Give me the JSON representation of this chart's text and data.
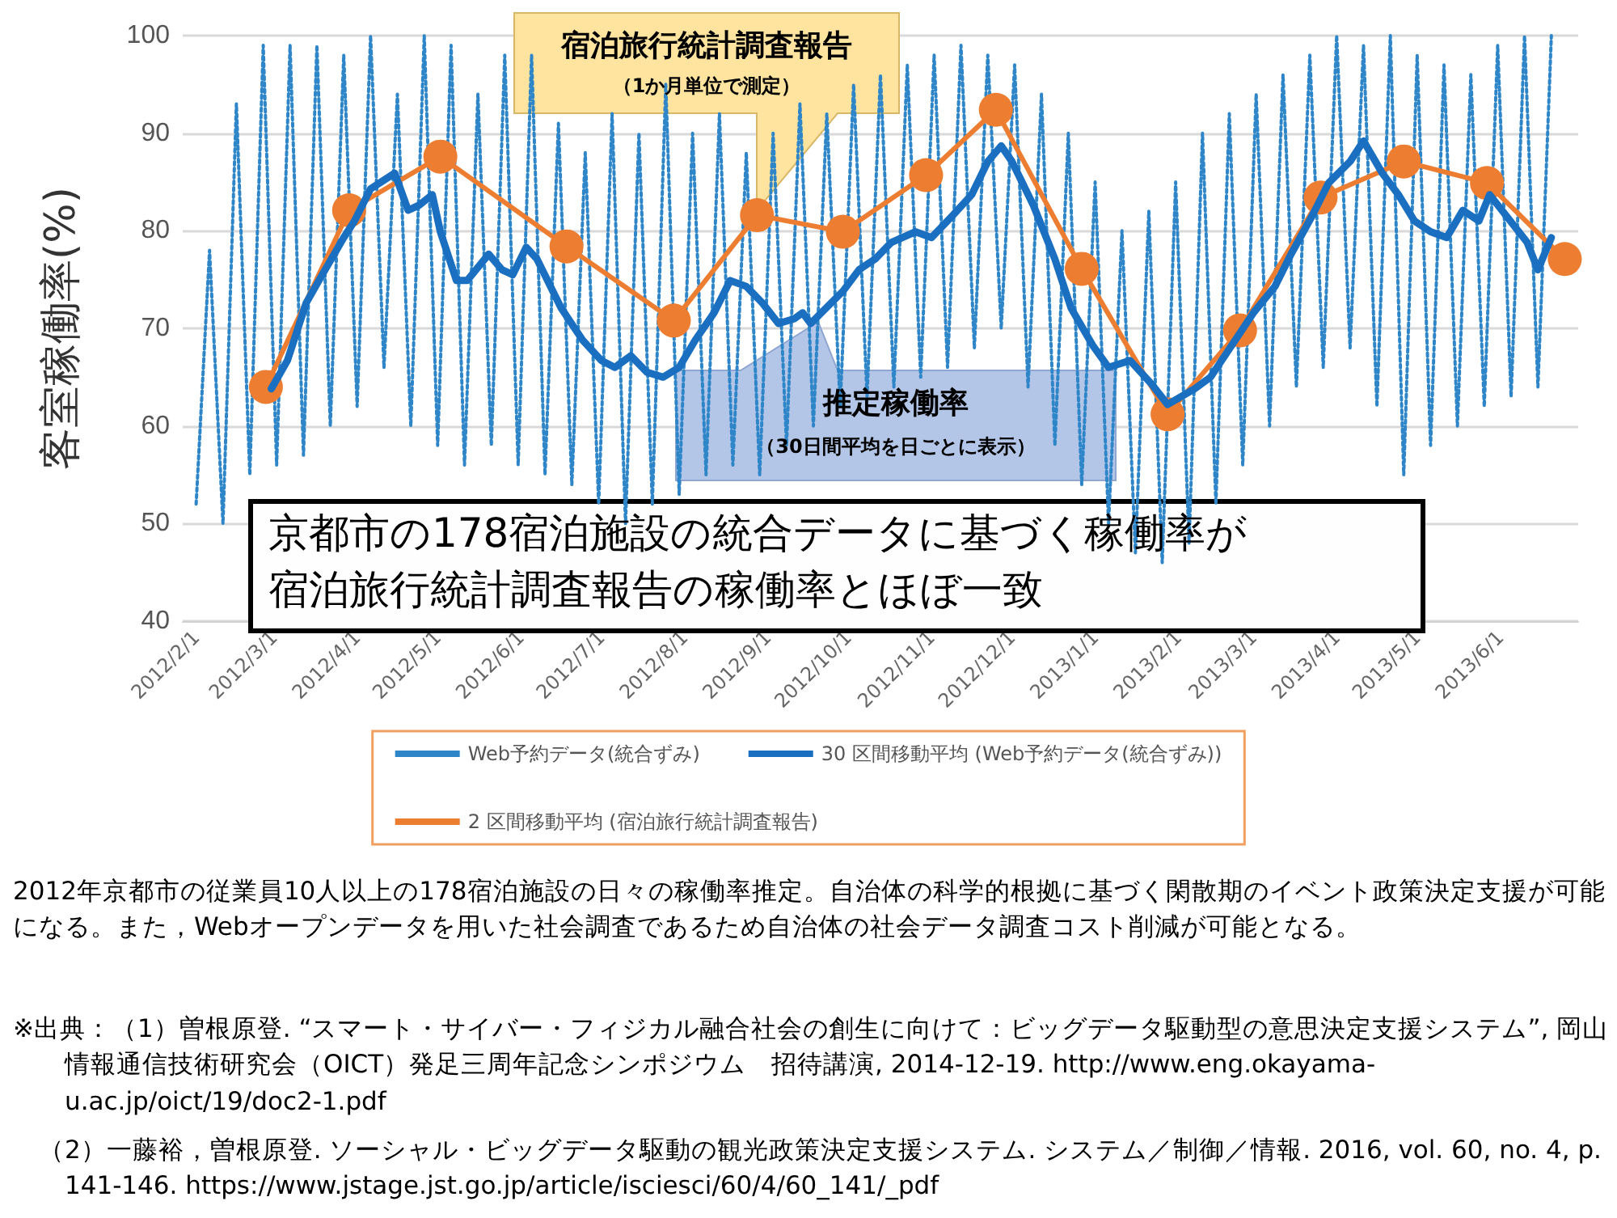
{
  "chart_data": {
    "type": "line",
    "ylabel": "客室稼働率(%)",
    "xlim": [
      "2012-01-27",
      "2013-06-30"
    ],
    "xticks": [
      {
        "value": "2012-02-01",
        "label": "2012/2/1"
      },
      {
        "value": "2012-03-01",
        "label": "2012/3/1"
      },
      {
        "value": "2012-04-01",
        "label": "2012/4/1"
      },
      {
        "value": "2012-05-01",
        "label": "2012/5/1"
      },
      {
        "value": "2012-06-01",
        "label": "2012/6/1"
      },
      {
        "value": "2012-07-01",
        "label": "2012/7/1"
      },
      {
        "value": "2012-08-01",
        "label": "2012/8/1"
      },
      {
        "value": "2012-09-01",
        "label": "2012/9/1"
      },
      {
        "value": "2012-10-01",
        "label": "2012/10/1"
      },
      {
        "value": "2012-11-01",
        "label": "2012/11/1"
      },
      {
        "value": "2012-12-01",
        "label": "2012/12/1"
      },
      {
        "value": "2013-01-01",
        "label": "2013/1/1"
      },
      {
        "value": "2013-02-01",
        "label": "2013/2/1"
      },
      {
        "value": "2013-03-01",
        "label": "2013/3/1"
      },
      {
        "value": "2013-04-01",
        "label": "2013/4/1"
      },
      {
        "value": "2013-05-01",
        "label": "2013/5/1"
      },
      {
        "value": "2013-06-01",
        "label": "2013/6/1"
      }
    ],
    "ylim": [
      40,
      100
    ],
    "yticks": [
      40,
      50,
      60,
      70,
      80,
      90,
      100
    ],
    "grid": "y",
    "legend": "bottom",
    "series": [
      {
        "name": "Web予約データ(統合ずみ)",
        "color": "#2e86c8",
        "line_style": "dotted",
        "marker": "none",
        "x": [
          "2012-02-01",
          "2012-02-06",
          "2012-02-11",
          "2012-02-16",
          "2012-02-21",
          "2012-02-26",
          "2012-03-02",
          "2012-03-07",
          "2012-03-12",
          "2012-03-17",
          "2012-03-22",
          "2012-03-27",
          "2012-04-01",
          "2012-04-06",
          "2012-04-11",
          "2012-04-16",
          "2012-04-21",
          "2012-04-26",
          "2012-05-01",
          "2012-05-06",
          "2012-05-11",
          "2012-05-16",
          "2012-05-21",
          "2012-05-26",
          "2012-05-31",
          "2012-06-05",
          "2012-06-10",
          "2012-06-15",
          "2012-06-20",
          "2012-06-25",
          "2012-06-30",
          "2012-07-05",
          "2012-07-10",
          "2012-07-15",
          "2012-07-20",
          "2012-07-25",
          "2012-07-30",
          "2012-08-04",
          "2012-08-09",
          "2012-08-14",
          "2012-08-19",
          "2012-08-24",
          "2012-08-29",
          "2012-09-03",
          "2012-09-08",
          "2012-09-13",
          "2012-09-18",
          "2012-09-23",
          "2012-09-28",
          "2012-10-03",
          "2012-10-08",
          "2012-10-13",
          "2012-10-18",
          "2012-10-23",
          "2012-10-28",
          "2012-11-02",
          "2012-11-07",
          "2012-11-12",
          "2012-11-17",
          "2012-11-22",
          "2012-11-27",
          "2012-12-02",
          "2012-12-07",
          "2012-12-12",
          "2012-12-17",
          "2012-12-22",
          "2012-12-27",
          "2013-01-01",
          "2013-01-06",
          "2013-01-11",
          "2013-01-16",
          "2013-01-21",
          "2013-01-26",
          "2013-01-31",
          "2013-02-05",
          "2013-02-10",
          "2013-02-15",
          "2013-02-20",
          "2013-02-25",
          "2013-03-02",
          "2013-03-07",
          "2013-03-12",
          "2013-03-17",
          "2013-03-22",
          "2013-03-27",
          "2013-04-01",
          "2013-04-06",
          "2013-04-11",
          "2013-04-16",
          "2013-04-21",
          "2013-04-26",
          "2013-05-01",
          "2013-05-06",
          "2013-05-11",
          "2013-05-16",
          "2013-05-21",
          "2013-05-26",
          "2013-05-31",
          "2013-06-05",
          "2013-06-10",
          "2013-06-15",
          "2013-06-20"
        ],
        "values": [
          52,
          78,
          50,
          93,
          55,
          99,
          56,
          99,
          57,
          99,
          60,
          98,
          62,
          100,
          66,
          94,
          60,
          100,
          58,
          99,
          56,
          94,
          58,
          98,
          56,
          98,
          55,
          91,
          54,
          88,
          52,
          92,
          50,
          90,
          52,
          95,
          53,
          90,
          55,
          92,
          56,
          88,
          55,
          90,
          58,
          93,
          60,
          92,
          62,
          95,
          63,
          96,
          64,
          97,
          65,
          98,
          66,
          99,
          68,
          98,
          70,
          97,
          64,
          94,
          58,
          90,
          54,
          85,
          50,
          80,
          47,
          82,
          46,
          85,
          48,
          90,
          52,
          92,
          56,
          94,
          60,
          96,
          64,
          98,
          66,
          100,
          68,
          99,
          62,
          100,
          55,
          98,
          58,
          97,
          60,
          96,
          62,
          99,
          63,
          100,
          64,
          100
        ]
      },
      {
        "name": "30 区間移動平均 (Web予約データ(統合ずみ))",
        "color": "#1a6fc0",
        "line_style": "solid",
        "marker": "none",
        "x": [
          "2012-02-29",
          "2012-03-06",
          "2012-03-13",
          "2012-03-19",
          "2012-03-27",
          "2012-03-31",
          "2012-04-06",
          "2012-04-15",
          "2012-04-20",
          "2012-04-24",
          "2012-04-29",
          "2012-05-02",
          "2012-05-08",
          "2012-05-12",
          "2012-05-20",
          "2012-05-25",
          "2012-05-29",
          "2012-06-03",
          "2012-06-07",
          "2012-06-16",
          "2012-06-24",
          "2012-07-01",
          "2012-07-06",
          "2012-07-12",
          "2012-07-18",
          "2012-07-24",
          "2012-07-30",
          "2012-08-05",
          "2012-08-12",
          "2012-08-18",
          "2012-08-24",
          "2012-08-30",
          "2012-09-05",
          "2012-09-11",
          "2012-09-14",
          "2012-09-17",
          "2012-09-29",
          "2012-10-05",
          "2012-10-11",
          "2012-10-17",
          "2012-10-26",
          "2012-11-01",
          "2012-11-09",
          "2012-11-16",
          "2012-11-22",
          "2012-11-27",
          "2012-12-01",
          "2012-12-09",
          "2012-12-17",
          "2012-12-23",
          "2012-12-31",
          "2013-01-06",
          "2013-01-14",
          "2013-01-22",
          "2013-01-28",
          "2013-02-07",
          "2013-02-13",
          "2013-02-21",
          "2013-03-01",
          "2013-03-09",
          "2013-03-15",
          "2013-03-23",
          "2013-03-29",
          "2013-04-06",
          "2013-04-11",
          "2013-04-18",
          "2013-04-24",
          "2013-04-30",
          "2013-05-06",
          "2013-05-12",
          "2013-05-18",
          "2013-05-24",
          "2013-05-28",
          "2013-06-03",
          "2013-06-11",
          "2013-06-15",
          "2013-06-20"
        ],
        "values": [
          63.8,
          66.7,
          72.6,
          75.5,
          79.3,
          81,
          84.3,
          85.9,
          82.1,
          82.6,
          83.7,
          79.9,
          74.9,
          74.9,
          77.6,
          76,
          75.5,
          78.3,
          77.1,
          72.1,
          68.8,
          66.7,
          66,
          67.2,
          65.5,
          65,
          66,
          68.8,
          71.6,
          74.9,
          74.3,
          72.6,
          70.5,
          71,
          71.6,
          70.5,
          73.8,
          76,
          77.1,
          78.8,
          79.9,
          79.3,
          81.6,
          83.7,
          87.1,
          88.7,
          87.1,
          82.6,
          77.1,
          72.1,
          68.3,
          66,
          66.7,
          64.3,
          62.2,
          63.8,
          65,
          68.3,
          71.6,
          74.3,
          77.6,
          81.6,
          84.9,
          87.1,
          89.2,
          85.9,
          83.7,
          81,
          79.9,
          79.3,
          82.1,
          81,
          83.7,
          81.6,
          78.8,
          76,
          79.3
        ]
      },
      {
        "name": "2 区間移動平均 (宿泊旅行統計調査報告)",
        "color": "#ed7d31",
        "line_style": "solid",
        "marker": "circle",
        "x": [
          "2012-02-27",
          "2012-03-29",
          "2012-05-02",
          "2012-06-18",
          "2012-07-28",
          "2012-08-28",
          "2012-09-29",
          "2012-10-30",
          "2012-11-25",
          "2012-12-27",
          "2013-01-28",
          "2013-02-24",
          "2013-03-26",
          "2013-04-26",
          "2013-05-27",
          "2013-06-25"
        ],
        "values": [
          64,
          82.1,
          87.6,
          78.4,
          70.8,
          81.6,
          79.9,
          85.7,
          92.4,
          76.1,
          61.2,
          69.8,
          83.4,
          87.1,
          84.9,
          77.1
        ]
      }
    ],
    "annotations": [
      "宿泊旅行統計調査報告",
      "（1か月単位で測定）",
      "推定稼働率",
      "（30日間平均を日ごとに表示）",
      "京都市の178宿泊施設の統合データに基づく稼働率が",
      "宿泊旅行統計調査報告の稼働率とほぼ一致",
      "2012年京都市の従業員10人以上の178宿泊施設の日々の稼働率推定。自治体の科学的根拠に基づく閑散期のイベント政策決定支援が可能になる。また，Webオープンデータを用いた社会調査であるため自治体の社会データ調査コスト削減が可能となる。",
      "※出典：（1）曽根原登. “スマート・サイバー・フィジカル融合社会の創生に向けて：ビッグデータ駆動型の意思決定支援システム”, 岡山情報通信技術研究会（OICT）発足三周年記念シンポジウム　招待講演, 2014-12-19. http://www.eng.okayama-u.ac.jp/oict/19/doc2-1.pdf",
      "（2）一藤裕，曽根原登. ソーシャル・ビッグデータ駆動の観光政策決定支援システム. システム／制御／情報. 2016, vol. 60, no. 4, p. 141-146. https://www.jstage.jst.go.jp/article/isciesci/60/4/60_141/_pdf"
    ]
  }
}
